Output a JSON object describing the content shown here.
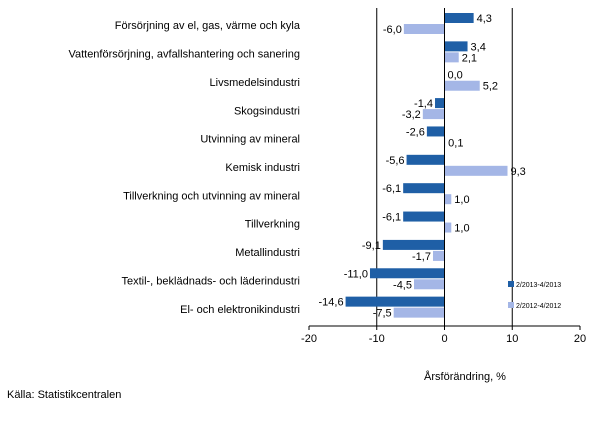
{
  "chart_data": {
    "type": "bar",
    "orientation": "horizontal",
    "categories": [
      "Försörjning av el, gas, värme och kyla",
      "Vattenförsörjning, avfallshantering och sanering",
      "Livsmedelsindustri",
      "Skogsindustri",
      "Utvinning av mineral",
      "Kemisk industri",
      "Tillverkning och utvinning av mineral",
      "Tillverkning",
      "Metallindustri",
      "Textil-, beklädnads- och läderindustri",
      "El- och elektronikindustri"
    ],
    "series": [
      {
        "name": "2/2013-4/2013",
        "color": "#1f5fa6",
        "values": [
          4.3,
          3.4,
          0.0,
          -1.4,
          -2.6,
          -5.6,
          -6.1,
          -6.1,
          -9.1,
          -11.0,
          -14.6
        ],
        "labels": [
          "4,3",
          "3,4",
          "0,0",
          "-1,4",
          "-2,6",
          "-5,6",
          "-6,1",
          "-6,1",
          "-9,1",
          "-11,0",
          "-14,6"
        ]
      },
      {
        "name": "2/2012-4/2012",
        "color": "#a4b6e6",
        "values": [
          -6.0,
          2.1,
          5.2,
          -3.2,
          0.1,
          9.3,
          1.0,
          1.0,
          -1.7,
          -4.5,
          -7.5
        ],
        "labels": [
          "-6,0",
          "2,1",
          "5,2",
          "-3,2",
          "0,1",
          "9,3",
          "1,0",
          "1,0",
          "-1,7",
          "-4,5",
          "-7,5"
        ]
      }
    ],
    "xlim": [
      -20,
      20
    ],
    "xticks": [
      -20,
      -10,
      0,
      10,
      20
    ],
    "xlabel": "Årsförändring, %",
    "grid": "vertical lines at -10 and 10",
    "legend_position": "right"
  },
  "source": "Källa: Statistikcentralen"
}
